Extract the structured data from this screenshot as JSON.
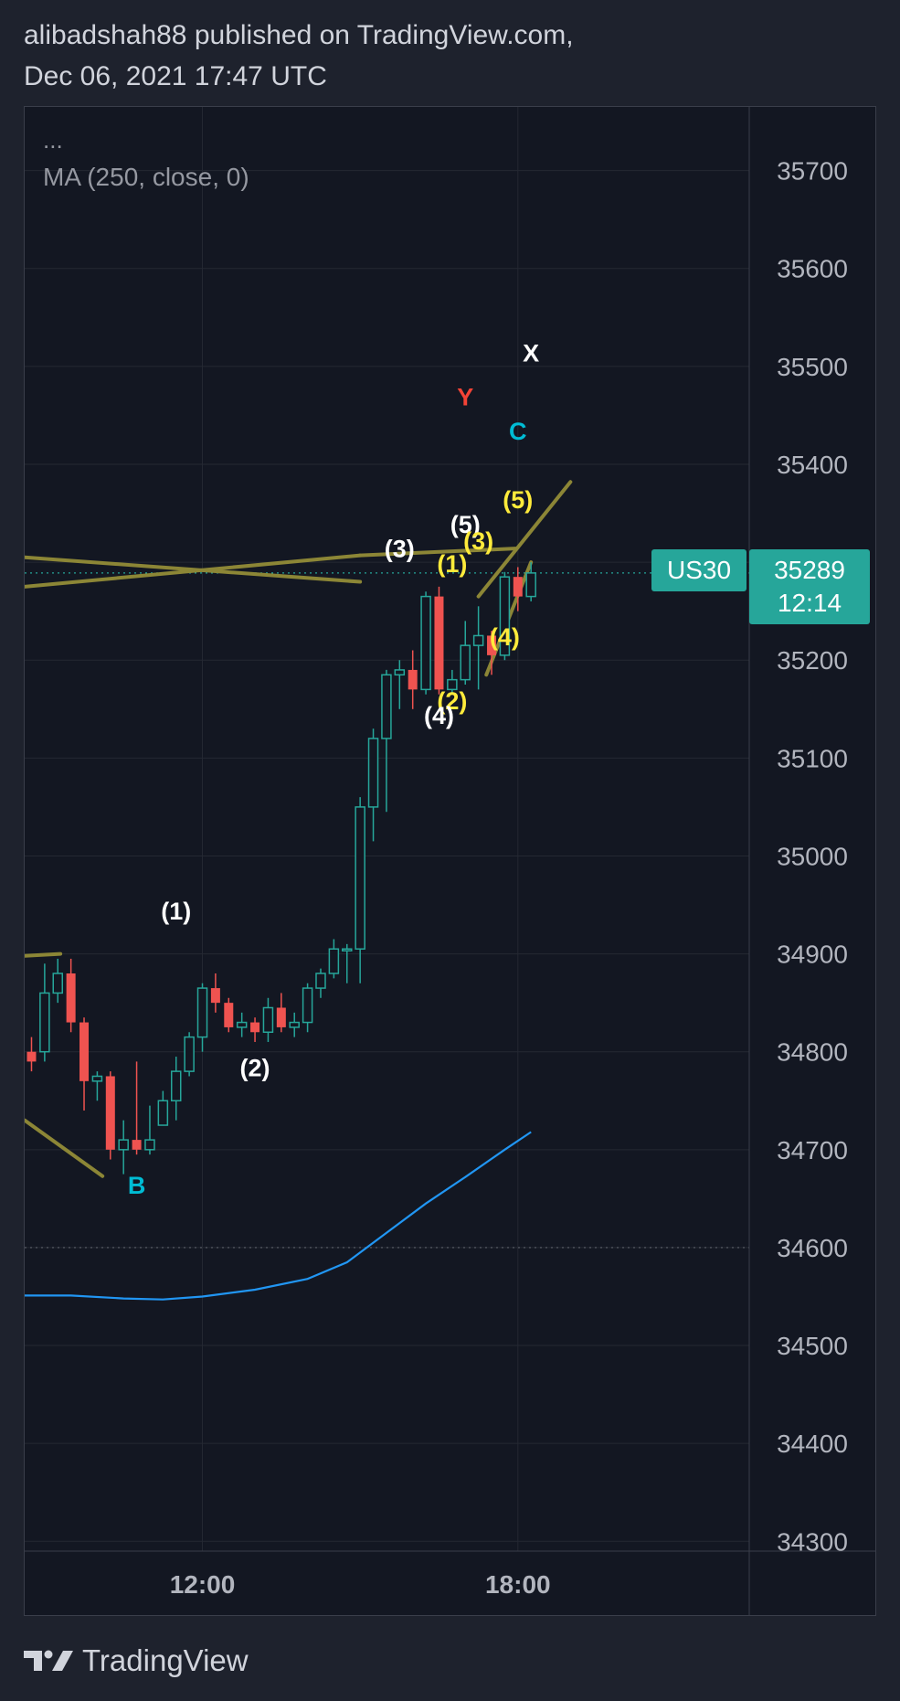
{
  "header": {
    "line1": "alibadshah88 published on TradingView.com,",
    "line2": "Dec 06, 2021 17:47 UTC"
  },
  "legend": {
    "more": "...",
    "indicator": "MA (250, close, 0)"
  },
  "footer": {
    "brand": "TradingView"
  },
  "colors": {
    "background": "#131722",
    "up": "#26a69a",
    "down": "#ef5350",
    "ma": "#2196f3",
    "trendline": "#8c8636",
    "wave_white": "#ffffff",
    "wave_yellow": "#ffeb3b",
    "wave_red": "#f44336",
    "wave_cyan": "#00bcd4"
  },
  "chart_data": {
    "type": "candlestick",
    "symbol": "US30",
    "y_ticks": [
      35700,
      35600,
      35500,
      35400,
      35300,
      35200,
      35100,
      35000,
      34900,
      34800,
      34700,
      34600,
      34500,
      34400,
      34300
    ],
    "x_ticks": [
      {
        "label": "12:00",
        "t": 12.0
      },
      {
        "label": "18:00",
        "t": 18.0
      }
    ],
    "ylim": [
      34290,
      35765
    ],
    "xlim": [
      8.62,
      22.4
    ],
    "price_tag": {
      "label": "US30",
      "value": 35289,
      "countdown": "12:14"
    },
    "ma_label": "MA (250, close, 0)",
    "candles": [
      {
        "t": 8.75,
        "o": 34800,
        "h": 34815,
        "l": 34780,
        "c": 34790
      },
      {
        "t": 9.0,
        "o": 34800,
        "h": 34890,
        "l": 34790,
        "c": 34860
      },
      {
        "t": 9.25,
        "o": 34860,
        "h": 34895,
        "l": 34850,
        "c": 34880
      },
      {
        "t": 9.5,
        "o": 34880,
        "h": 34895,
        "l": 34820,
        "c": 34830
      },
      {
        "t": 9.75,
        "o": 34830,
        "h": 34835,
        "l": 34740,
        "c": 34770
      },
      {
        "t": 10.0,
        "o": 34770,
        "h": 34780,
        "l": 34750,
        "c": 34775
      },
      {
        "t": 10.25,
        "o": 34775,
        "h": 34780,
        "l": 34690,
        "c": 34700
      },
      {
        "t": 10.5,
        "o": 34700,
        "h": 34730,
        "l": 34675,
        "c": 34710
      },
      {
        "t": 10.75,
        "o": 34710,
        "h": 34790,
        "l": 34695,
        "c": 34700
      },
      {
        "t": 11.0,
        "o": 34700,
        "h": 34745,
        "l": 34695,
        "c": 34710
      },
      {
        "t": 11.25,
        "o": 34725,
        "h": 34760,
        "l": 34725,
        "c": 34750
      },
      {
        "t": 11.5,
        "o": 34750,
        "h": 34795,
        "l": 34730,
        "c": 34780
      },
      {
        "t": 11.75,
        "o": 34780,
        "h": 34820,
        "l": 34775,
        "c": 34815
      },
      {
        "t": 12.0,
        "o": 34815,
        "h": 34870,
        "l": 34800,
        "c": 34865
      },
      {
        "t": 12.25,
        "o": 34865,
        "h": 34880,
        "l": 34840,
        "c": 34850
      },
      {
        "t": 12.5,
        "o": 34850,
        "h": 34855,
        "l": 34820,
        "c": 34825
      },
      {
        "t": 12.75,
        "o": 34825,
        "h": 34840,
        "l": 34815,
        "c": 34830
      },
      {
        "t": 13.0,
        "o": 34830,
        "h": 34835,
        "l": 34810,
        "c": 34820
      },
      {
        "t": 13.25,
        "o": 34820,
        "h": 34855,
        "l": 34810,
        "c": 34845
      },
      {
        "t": 13.5,
        "o": 34845,
        "h": 34860,
        "l": 34820,
        "c": 34825
      },
      {
        "t": 13.75,
        "o": 34825,
        "h": 34840,
        "l": 34815,
        "c": 34830
      },
      {
        "t": 14.0,
        "o": 34830,
        "h": 34870,
        "l": 34820,
        "c": 34865
      },
      {
        "t": 14.25,
        "o": 34865,
        "h": 34885,
        "l": 34855,
        "c": 34880
      },
      {
        "t": 14.5,
        "o": 34880,
        "h": 34915,
        "l": 34875,
        "c": 34905
      },
      {
        "t": 14.75,
        "o": 34905,
        "h": 34910,
        "l": 34870,
        "c": 34905
      },
      {
        "t": 15.0,
        "o": 34905,
        "h": 35060,
        "l": 34870,
        "c": 35050
      },
      {
        "t": 15.25,
        "o": 35050,
        "h": 35130,
        "l": 35015,
        "c": 35120
      },
      {
        "t": 15.5,
        "o": 35120,
        "h": 35190,
        "l": 35045,
        "c": 35185
      },
      {
        "t": 15.75,
        "o": 35185,
        "h": 35200,
        "l": 35150,
        "c": 35190
      },
      {
        "t": 16.0,
        "o": 35190,
        "h": 35210,
        "l": 35150,
        "c": 35170
      },
      {
        "t": 16.25,
        "o": 35170,
        "h": 35270,
        "l": 35165,
        "c": 35265
      },
      {
        "t": 16.5,
        "o": 35265,
        "h": 35275,
        "l": 35165,
        "c": 35170
      },
      {
        "t": 16.75,
        "o": 35170,
        "h": 35190,
        "l": 35165,
        "c": 35180
      },
      {
        "t": 17.0,
        "o": 35180,
        "h": 35240,
        "l": 35175,
        "c": 35215
      },
      {
        "t": 17.25,
        "o": 35215,
        "h": 35255,
        "l": 35170,
        "c": 35225
      },
      {
        "t": 17.5,
        "o": 35225,
        "h": 35230,
        "l": 35185,
        "c": 35205
      },
      {
        "t": 17.75,
        "o": 35205,
        "h": 35290,
        "l": 35200,
        "c": 35285
      },
      {
        "t": 18.0,
        "o": 35285,
        "h": 35295,
        "l": 35250,
        "c": 35265
      },
      {
        "t": 18.25,
        "o": 35265,
        "h": 35300,
        "l": 35260,
        "c": 35289
      }
    ],
    "ma": [
      {
        "t": 8.62,
        "v": 34551
      },
      {
        "t": 9.5,
        "v": 34551
      },
      {
        "t": 10.5,
        "v": 34548
      },
      {
        "t": 11.25,
        "v": 34547
      },
      {
        "t": 12.0,
        "v": 34550
      },
      {
        "t": 13.0,
        "v": 34557
      },
      {
        "t": 14.0,
        "v": 34568
      },
      {
        "t": 14.75,
        "v": 34585
      },
      {
        "t": 15.5,
        "v": 34615
      },
      {
        "t": 16.25,
        "v": 34645
      },
      {
        "t": 17.0,
        "v": 34672
      },
      {
        "t": 17.75,
        "v": 34700
      },
      {
        "t": 18.25,
        "v": 34718
      }
    ],
    "horizontal_dotted": [
      {
        "value": 35289,
        "t_from": 8.62,
        "t_to": 22.4
      },
      {
        "value": 34600,
        "t_from": 8.62,
        "t_to": 22.4
      }
    ],
    "trendlines": [
      {
        "t1": 8.62,
        "v1": 35305,
        "t2": 15.0,
        "v2": 35280
      },
      {
        "t1": 8.62,
        "v1": 35275,
        "t2": 15.0,
        "v2": 35307
      },
      {
        "t1": 15.0,
        "v1": 35307,
        "t2": 17.95,
        "v2": 35314
      },
      {
        "t1": 8.62,
        "v1": 34898,
        "t2": 9.3,
        "v2": 34900
      },
      {
        "t1": 8.62,
        "v1": 34730,
        "t2": 10.1,
        "v2": 34673
      },
      {
        "t1": 17.25,
        "v1": 35265,
        "t2": 19.0,
        "v2": 35382
      },
      {
        "t1": 17.4,
        "v1": 35185,
        "t2": 18.25,
        "v2": 35300
      }
    ],
    "annotations": [
      {
        "text": "X",
        "t": 18.25,
        "v": 35505,
        "color": "wave_white"
      },
      {
        "text": "Y",
        "t": 17.0,
        "v": 35460,
        "color": "wave_red"
      },
      {
        "text": "C",
        "t": 18.0,
        "v": 35425,
        "color": "wave_cyan"
      },
      {
        "text": "(5)",
        "t": 18.0,
        "v": 35355,
        "color": "wave_yellow"
      },
      {
        "text": "(5)",
        "t": 17.0,
        "v": 35330,
        "color": "wave_white"
      },
      {
        "text": "(3)",
        "t": 17.25,
        "v": 35313,
        "color": "wave_yellow"
      },
      {
        "text": "(3)",
        "t": 15.75,
        "v": 35305,
        "color": "wave_white"
      },
      {
        "text": "(1)",
        "t": 16.75,
        "v": 35290,
        "color": "wave_yellow"
      },
      {
        "text": "(4)",
        "t": 17.75,
        "v": 35215,
        "color": "wave_yellow"
      },
      {
        "text": "(2)",
        "t": 16.75,
        "v": 35150,
        "color": "wave_yellow"
      },
      {
        "text": "(4)",
        "t": 16.5,
        "v": 35135,
        "color": "wave_white"
      },
      {
        "text": "(1)",
        "t": 11.5,
        "v": 34935,
        "color": "wave_white"
      },
      {
        "text": "(2)",
        "t": 13.0,
        "v": 34775,
        "color": "wave_white"
      },
      {
        "text": "B",
        "t": 10.75,
        "v": 34655,
        "color": "wave_cyan"
      }
    ]
  }
}
